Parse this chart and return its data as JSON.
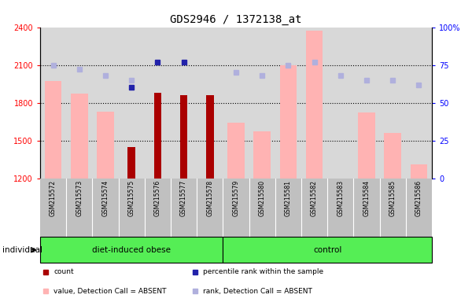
{
  "title": "GDS2946 / 1372138_at",
  "samples": [
    "GSM215572",
    "GSM215573",
    "GSM215574",
    "GSM215575",
    "GSM215576",
    "GSM215577",
    "GSM215578",
    "GSM215579",
    "GSM215580",
    "GSM215581",
    "GSM215582",
    "GSM215583",
    "GSM215584",
    "GSM215585",
    "GSM215586"
  ],
  "n_obese": 7,
  "value_absent": [
    1970,
    1870,
    1730,
    null,
    null,
    null,
    null,
    1640,
    1570,
    2100,
    2370,
    null,
    1720,
    1560,
    1310
  ],
  "count": [
    null,
    null,
    null,
    1450,
    1880,
    1860,
    1860,
    null,
    null,
    null,
    null,
    null,
    null,
    null,
    null
  ],
  "rank_absent": [
    75,
    72,
    68,
    65,
    null,
    null,
    null,
    70,
    68,
    75,
    77,
    68,
    65,
    65,
    62
  ],
  "pct_rank": [
    null,
    null,
    null,
    60,
    77,
    77,
    null,
    null,
    null,
    null,
    null,
    null,
    null,
    null,
    null
  ],
  "ylim_left": [
    1200,
    2400
  ],
  "ylim_right": [
    0,
    100
  ],
  "yticks_left": [
    1200,
    1500,
    1800,
    2100,
    2400
  ],
  "yticks_right": [
    0,
    25,
    50,
    75,
    100
  ],
  "hlines": [
    2100,
    1800,
    1500
  ],
  "bar_color_absent": "#ffb3b3",
  "bar_color_count": "#aa0000",
  "dot_color_rank_absent": "#b0b0dd",
  "dot_color_pct": "#2222aa",
  "background_plot": "#d8d8d8",
  "background_label": "#c0c0c0",
  "group_bg": "#55ee55",
  "legend_items": [
    {
      "color": "#aa0000",
      "label": "count"
    },
    {
      "color": "#2222aa",
      "label": "percentile rank within the sample"
    },
    {
      "color": "#ffb3b3",
      "label": "value, Detection Call = ABSENT"
    },
    {
      "color": "#b0b0dd",
      "label": "rank, Detection Call = ABSENT"
    }
  ]
}
